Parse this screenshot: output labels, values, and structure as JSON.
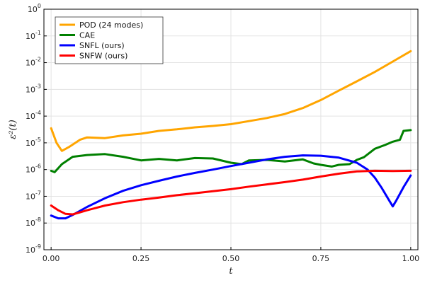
{
  "chart_data": {
    "type": "line",
    "title": "",
    "xlabel": "t",
    "ylabel": "ε²(t)",
    "xlim": [
      -0.02,
      1.02
    ],
    "ylim_log10": [
      -9,
      0
    ],
    "yscale": "log",
    "grid": true,
    "legend_position": "top-left",
    "x_ticks": [
      0.0,
      0.25,
      0.5,
      0.75,
      1.0
    ],
    "x_tick_labels": [
      "0.00",
      "0.25",
      "0.50",
      "0.75",
      "1.00"
    ],
    "y_ticks_log10": [
      -9,
      -8,
      -7,
      -6,
      -5,
      -4,
      -3,
      -2,
      -1,
      0
    ],
    "y_tick_labels": [
      {
        "base": "10",
        "exp": "-9"
      },
      {
        "base": "10",
        "exp": "-8"
      },
      {
        "base": "10",
        "exp": "-7"
      },
      {
        "base": "10",
        "exp": "-6"
      },
      {
        "base": "10",
        "exp": "-5"
      },
      {
        "base": "10",
        "exp": "-4"
      },
      {
        "base": "10",
        "exp": "-3"
      },
      {
        "base": "10",
        "exp": "-2"
      },
      {
        "base": "10",
        "exp": "-1"
      },
      {
        "base": "10",
        "exp": "0"
      }
    ],
    "series": [
      {
        "name": "POD (24 modes)",
        "color": "#FFA500",
        "x": [
          0.0,
          0.015,
          0.03,
          0.05,
          0.08,
          0.1,
          0.15,
          0.2,
          0.25,
          0.3,
          0.35,
          0.4,
          0.45,
          0.5,
          0.55,
          0.6,
          0.65,
          0.7,
          0.75,
          0.8,
          0.85,
          0.9,
          0.95,
          1.0
        ],
        "y": [
          3.5e-05,
          1e-05,
          5e-06,
          7e-06,
          1.3e-05,
          1.6e-05,
          1.5e-05,
          1.9e-05,
          2.2e-05,
          2.8e-05,
          3.2e-05,
          3.8e-05,
          4.3e-05,
          5e-05,
          6.5e-05,
          8.5e-05,
          0.00012,
          0.0002,
          0.0004,
          0.0009,
          0.002,
          0.0045,
          0.011,
          0.027
        ]
      },
      {
        "name": "CAE",
        "color": "#008000",
        "x": [
          0.0,
          0.01,
          0.03,
          0.06,
          0.1,
          0.15,
          0.2,
          0.25,
          0.3,
          0.35,
          0.4,
          0.45,
          0.5,
          0.53,
          0.55,
          0.6,
          0.65,
          0.7,
          0.73,
          0.75,
          0.78,
          0.8,
          0.83,
          0.85,
          0.87,
          0.9,
          0.93,
          0.95,
          0.97,
          0.98,
          1.0
        ],
        "y": [
          9e-07,
          8e-07,
          1.6e-06,
          3e-06,
          3.5e-06,
          3.8e-06,
          3e-06,
          2.2e-06,
          2.5e-06,
          2.2e-06,
          2.7e-06,
          2.6e-06,
          1.8e-06,
          1.6e-06,
          2.2e-06,
          2.3e-06,
          2e-06,
          2.4e-06,
          1.7e-06,
          1.5e-06,
          1.3e-06,
          1.5e-06,
          1.6e-06,
          2.3e-06,
          2.9e-06,
          6e-06,
          8.5e-06,
          1.1e-05,
          1.3e-05,
          2.8e-05,
          3e-05
        ]
      },
      {
        "name": "SNFL (ours)",
        "color": "#0000FF",
        "x": [
          0.0,
          0.02,
          0.04,
          0.06,
          0.1,
          0.15,
          0.2,
          0.25,
          0.3,
          0.35,
          0.4,
          0.45,
          0.5,
          0.55,
          0.6,
          0.65,
          0.7,
          0.75,
          0.8,
          0.85,
          0.88,
          0.9,
          0.92,
          0.94,
          0.95,
          0.96,
          0.98,
          1.0
        ],
        "y": [
          1.9e-08,
          1.5e-08,
          1.5e-08,
          2e-08,
          4e-08,
          8.5e-08,
          1.6e-07,
          2.6e-07,
          3.8e-07,
          5.5e-07,
          7.5e-07,
          1e-06,
          1.35e-06,
          1.8e-06,
          2.4e-06,
          3e-06,
          3.4e-06,
          3.3e-06,
          2.8e-06,
          1.8e-06,
          1e-06,
          5e-07,
          2e-07,
          7e-08,
          4.2e-08,
          7e-08,
          2.2e-07,
          6e-07
        ]
      },
      {
        "name": "SNFW (ours)",
        "color": "#FF0000",
        "x": [
          0.0,
          0.02,
          0.04,
          0.06,
          0.08,
          0.1,
          0.15,
          0.2,
          0.25,
          0.3,
          0.35,
          0.4,
          0.45,
          0.5,
          0.55,
          0.6,
          0.65,
          0.7,
          0.75,
          0.8,
          0.85,
          0.9,
          0.95,
          1.0
        ],
        "y": [
          4.5e-08,
          3e-08,
          2.2e-08,
          2.1e-08,
          2.5e-08,
          3e-08,
          4.5e-08,
          6e-08,
          7.5e-08,
          9e-08,
          1.1e-07,
          1.3e-07,
          1.55e-07,
          1.85e-07,
          2.3e-07,
          2.8e-07,
          3.4e-07,
          4.2e-07,
          5.5e-07,
          7e-07,
          8.5e-07,
          9e-07,
          8.8e-07,
          9e-07
        ]
      }
    ]
  }
}
